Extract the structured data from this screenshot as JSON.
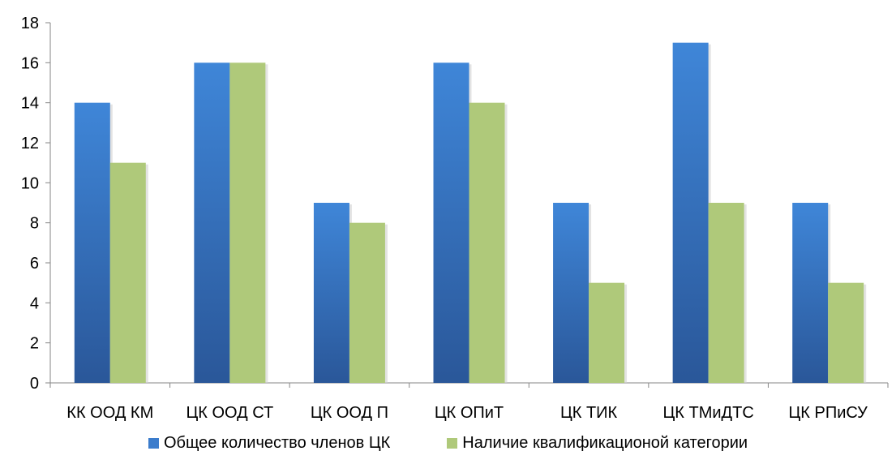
{
  "chart_data": {
    "type": "bar",
    "categories": [
      "КК ООД КМ",
      "ЦК ООД СТ",
      "ЦК ООД П",
      "ЦК ОПиТ",
      "ЦК ТИК",
      "ЦК ТМиДТС",
      "ЦК РПиСУ"
    ],
    "series": [
      {
        "name": "Общее количество членов ЦК",
        "values": [
          14,
          16,
          9,
          16,
          9,
          17,
          9
        ],
        "color": "#3b7ccc"
      },
      {
        "name": "Наличие квалификационой категории",
        "values": [
          11,
          16,
          8,
          14,
          5,
          9,
          5
        ],
        "color": "#afc97a"
      }
    ],
    "yticks": [
      "0",
      "2",
      "4",
      "6",
      "8",
      "10",
      "12",
      "14",
      "16",
      "18"
    ],
    "ylim": [
      0,
      18
    ],
    "grid": false,
    "legend_position": "bottom"
  }
}
